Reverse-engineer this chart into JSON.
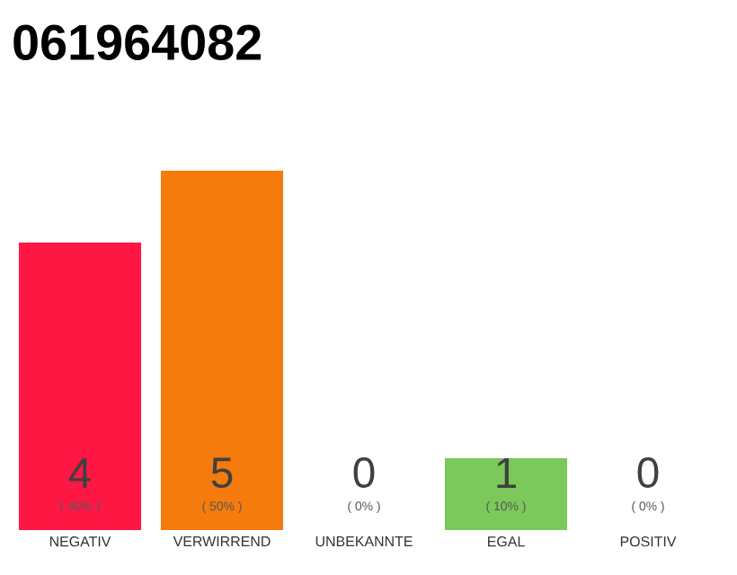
{
  "chart_data": {
    "type": "bar",
    "title": "061964082",
    "categories": [
      "NEGATIV",
      "VERWIRREND",
      "UNBEKANNTE",
      "EGAL",
      "POSITIV"
    ],
    "values": [
      4,
      5,
      0,
      1,
      0
    ],
    "colors": [
      "#ff1744",
      "#f47b0c",
      "#e0e0e0",
      "#7ac95a",
      "#e0e0e0"
    ],
    "ylim": [
      0,
      5
    ],
    "data_labels": true,
    "annotations": [
      "( 40% )",
      "( 50% )",
      "( 0% )",
      "( 10% )",
      "( 0% )"
    ]
  }
}
